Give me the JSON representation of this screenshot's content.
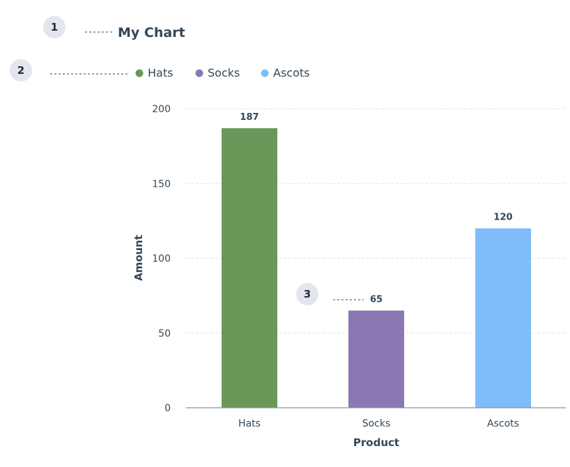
{
  "callouts": [
    {
      "number": "1",
      "target": "title"
    },
    {
      "number": "2",
      "target": "legend"
    },
    {
      "number": "3",
      "target": "data-label-socks"
    }
  ],
  "chart_data": {
    "type": "bar",
    "title": "My Chart",
    "categories": [
      "Hats",
      "Socks",
      "Ascots"
    ],
    "values": [
      187,
      65,
      120
    ],
    "colors": [
      "#6a9859",
      "#8b78b3",
      "#7fbdf9"
    ],
    "legend": [
      "Hats",
      "Socks",
      "Ascots"
    ],
    "legend_placement": "top-left",
    "xlabel": "Product",
    "ylabel": "Amount",
    "ylim": [
      0,
      200
    ],
    "yticks": [
      0,
      50,
      100,
      150,
      200
    ],
    "grid": true,
    "data_labels": true
  }
}
